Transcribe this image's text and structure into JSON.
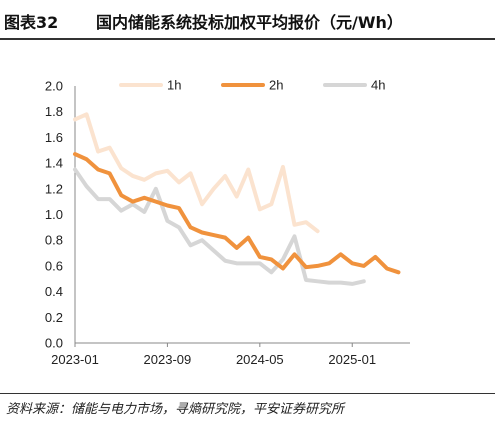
{
  "figure": {
    "label": "图表32",
    "title": "国内储能系统投标加权平均报价（元/Wh）",
    "source": "资料来源：储能与电力市场，寻熵研究院，平安证券研究所"
  },
  "colors": {
    "1h": "#FBE3CF",
    "2h": "#F0923D",
    "4h": "#D6D6D6",
    "axis": "#888888"
  },
  "chart_data": {
    "type": "line",
    "title": "国内储能系统投标加权平均报价（元/Wh）",
    "xlabel": "",
    "ylabel": "",
    "ylim": [
      0.0,
      2.0
    ],
    "yticks": [
      "0.0",
      "0.2",
      "0.4",
      "0.6",
      "0.8",
      "1.0",
      "1.2",
      "1.4",
      "1.6",
      "1.8",
      "2.0"
    ],
    "xticks": [
      "2023-01",
      "2023-09",
      "2024-05",
      "2025-01"
    ],
    "x": [
      "2023-01",
      "2023-02",
      "2023-03",
      "2023-04",
      "2023-05",
      "2023-06",
      "2023-07",
      "2023-08",
      "2023-09",
      "2023-10",
      "2023-11",
      "2023-12",
      "2024-01",
      "2024-02",
      "2024-03",
      "2024-04",
      "2024-05",
      "2024-06",
      "2024-07",
      "2024-08",
      "2024-09",
      "2024-10",
      "2024-11",
      "2024-12",
      "2025-01",
      "2025-02",
      "2025-03",
      "2025-04",
      "2025-05",
      "2025-06"
    ],
    "legend_position": "top",
    "grid": false,
    "series": [
      {
        "name": "1h",
        "values": [
          1.74,
          1.78,
          1.49,
          1.52,
          1.36,
          1.3,
          1.27,
          1.32,
          1.34,
          1.25,
          1.32,
          1.08,
          1.2,
          1.3,
          1.14,
          1.35,
          1.04,
          1.08,
          1.37,
          0.92,
          0.94,
          0.87,
          null,
          null,
          null,
          null,
          null,
          null,
          null,
          null
        ]
      },
      {
        "name": "2h",
        "values": [
          1.47,
          1.43,
          1.35,
          1.32,
          1.15,
          1.1,
          1.13,
          1.1,
          1.07,
          1.05,
          0.9,
          0.86,
          0.84,
          0.82,
          0.74,
          0.82,
          0.67,
          0.65,
          0.58,
          0.69,
          0.59,
          0.6,
          0.62,
          0.69,
          0.62,
          0.6,
          0.67,
          0.58,
          0.55,
          null
        ]
      },
      {
        "name": "4h",
        "values": [
          1.35,
          1.22,
          1.12,
          1.12,
          1.03,
          1.08,
          1.02,
          1.2,
          0.95,
          0.9,
          0.76,
          0.8,
          0.72,
          0.64,
          0.62,
          0.62,
          0.62,
          0.55,
          0.65,
          0.83,
          0.49,
          0.48,
          0.47,
          0.47,
          0.46,
          0.48,
          null,
          null,
          null,
          null
        ]
      }
    ]
  }
}
